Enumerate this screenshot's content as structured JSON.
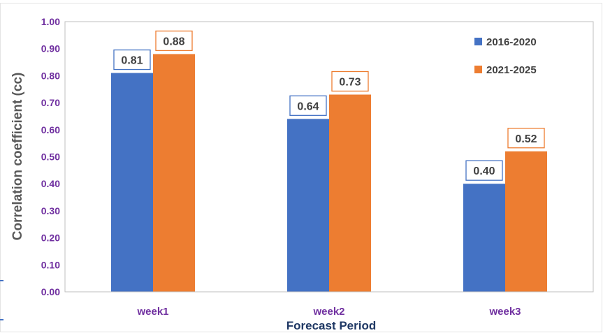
{
  "chart_data": {
    "type": "bar",
    "categories": [
      "week1",
      "week2",
      "week3"
    ],
    "series": [
      {
        "name": "2016-2020",
        "color": "#4472C4",
        "values": [
          0.81,
          0.64,
          0.4
        ],
        "labels": [
          "0.81",
          "0.64",
          "0.40"
        ]
      },
      {
        "name": "2021-2025",
        "color": "#ED7D31",
        "values": [
          0.88,
          0.73,
          0.52
        ],
        "labels": [
          "0.88",
          "0.73",
          "0.52"
        ]
      }
    ],
    "title": "",
    "xlabel": "Forecast Period",
    "ylabel": "Correlation coefficient (cc)",
    "ylim": [
      0,
      1.0
    ],
    "yticks": [
      "0.00",
      "0.10",
      "0.20",
      "0.30",
      "0.40",
      "0.50",
      "0.60",
      "0.70",
      "0.80",
      "0.90",
      "1.00"
    ],
    "grid": false,
    "legend": "top-right",
    "colors": {
      "tick_labels": "#7030A0",
      "category_labels": "#7030A0",
      "xlabel": "#1F3864",
      "ylabel": "#595959",
      "data_label_text": "#404040"
    }
  }
}
